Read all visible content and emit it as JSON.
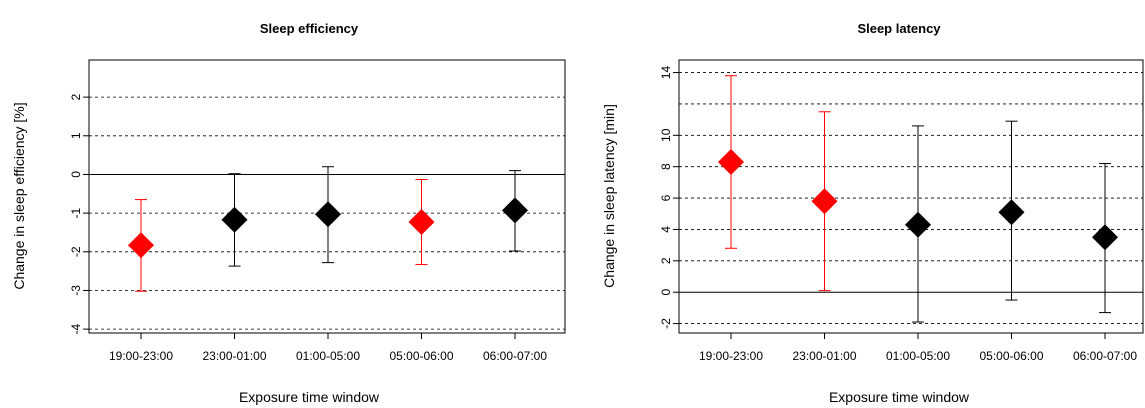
{
  "chart_data": [
    {
      "type": "scatter",
      "title": "Sleep efficiency",
      "xlabel": "Exposure time window",
      "ylabel": "Change in sleep efficiency [%]",
      "categories": [
        "19:00-23:00",
        "23:00-01:00",
        "01:00-05:00",
        "05:00-06:00",
        "06:00-07:00"
      ],
      "values": [
        -1.83,
        -1.17,
        -1.03,
        -1.23,
        -0.93
      ],
      "lower": [
        -3.02,
        -2.37,
        -2.28,
        -2.33,
        -1.98
      ],
      "upper": [
        -0.65,
        0.02,
        0.2,
        -0.13,
        0.1
      ],
      "highlighted": [
        true,
        false,
        false,
        true,
        false
      ],
      "ylim": [
        -4,
        2
      ],
      "yticks": [
        -4,
        -3,
        -2,
        -1,
        0,
        1,
        2
      ],
      "dashed_gridlines": [
        -4,
        -3,
        -2,
        -1,
        1,
        2
      ],
      "reference_line": 0,
      "colors": {
        "highlight": "#ff0000",
        "default": "#000000"
      }
    },
    {
      "type": "scatter",
      "title": "Sleep latency",
      "xlabel": "Exposure time window",
      "ylabel": "Change in sleep latency [min]",
      "categories": [
        "19:00-23:00",
        "23:00-01:00",
        "01:00-05:00",
        "05:00-06:00",
        "06:00-07:00"
      ],
      "values": [
        8.3,
        5.8,
        4.3,
        5.1,
        3.5
      ],
      "lower": [
        2.8,
        0.1,
        -1.9,
        -0.5,
        -1.3
      ],
      "upper": [
        13.8,
        11.5,
        10.6,
        10.9,
        8.2
      ],
      "highlighted": [
        true,
        true,
        false,
        false,
        false
      ],
      "ylim": [
        -2,
        14
      ],
      "yticks": [
        -2,
        0,
        2,
        4,
        6,
        8,
        10,
        14
      ],
      "dashed_gridlines": [
        -2,
        2,
        4,
        6,
        8,
        10,
        12,
        14
      ],
      "reference_line": 0,
      "colors": {
        "highlight": "#ff0000",
        "default": "#000000"
      }
    }
  ]
}
